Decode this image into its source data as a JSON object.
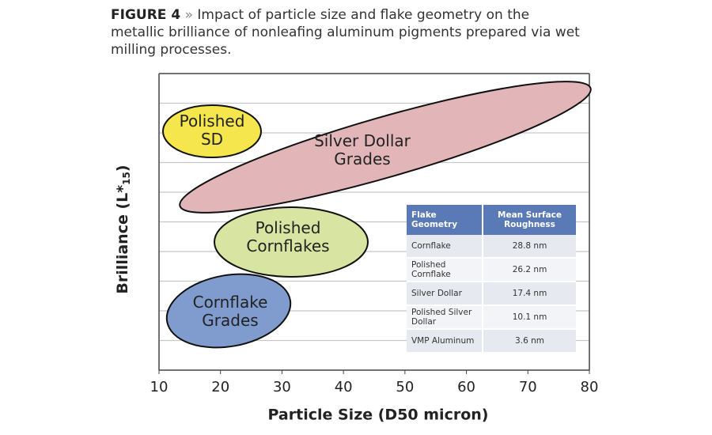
{
  "figure_label": "FIGURE 4",
  "separator": "»",
  "caption": "Impact of particle size and flake geometry on the metallic brilliance of nonleafing aluminum pigments prepared via wet milling processes.",
  "chart_data": {
    "type": "region",
    "xlabel": "Particle Size (D50 micron)",
    "ylabel": "Brilliance (L*",
    "ylabel_sub": "15",
    "ylabel_end": ")",
    "xlim": [
      10,
      80
    ],
    "xticks": [
      10,
      20,
      30,
      40,
      50,
      60,
      70,
      80
    ],
    "grid": true,
    "regions": [
      {
        "lines": [
          "Polished",
          "SD"
        ],
        "color": "#f4e64c"
      },
      {
        "lines": [
          "Silver Dollar",
          "Grades"
        ],
        "color": "#e2b6b9"
      },
      {
        "lines": [
          "Polished",
          "Cornflakes"
        ],
        "color": "#d7e4a2"
      },
      {
        "lines": [
          "Cornflake",
          "Grades"
        ],
        "color": "#809cce"
      }
    ]
  },
  "table": {
    "header": [
      "Flake Geometry",
      "Mean Surface Roughness"
    ],
    "rows": [
      [
        "Cornflake",
        "28.8 nm"
      ],
      [
        "Polished Cornflake",
        "26.2 nm"
      ],
      [
        "Silver Dollar",
        "17.4 nm"
      ],
      [
        "Polished Silver Dollar",
        "10.1 nm"
      ],
      [
        "VMP Aluminum",
        "3.6 nm"
      ]
    ]
  }
}
